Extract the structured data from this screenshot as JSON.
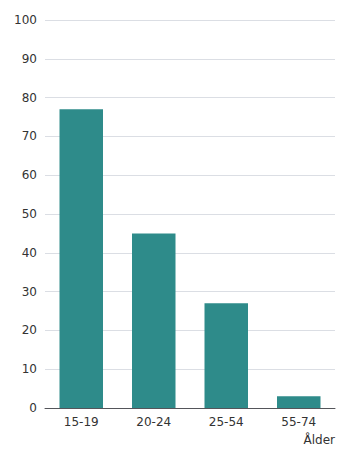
{
  "chart_data": {
    "type": "bar",
    "categories": [
      "15-19",
      "20-24",
      "25-54",
      "55-74"
    ],
    "values": [
      77,
      45,
      27,
      3
    ],
    "color": "#2E8B8A",
    "ylim": [
      0,
      100
    ],
    "yticks": [
      0,
      10,
      20,
      30,
      40,
      50,
      60,
      70,
      80,
      90,
      100
    ],
    "xlabel": "Ålder",
    "grid": true
  }
}
